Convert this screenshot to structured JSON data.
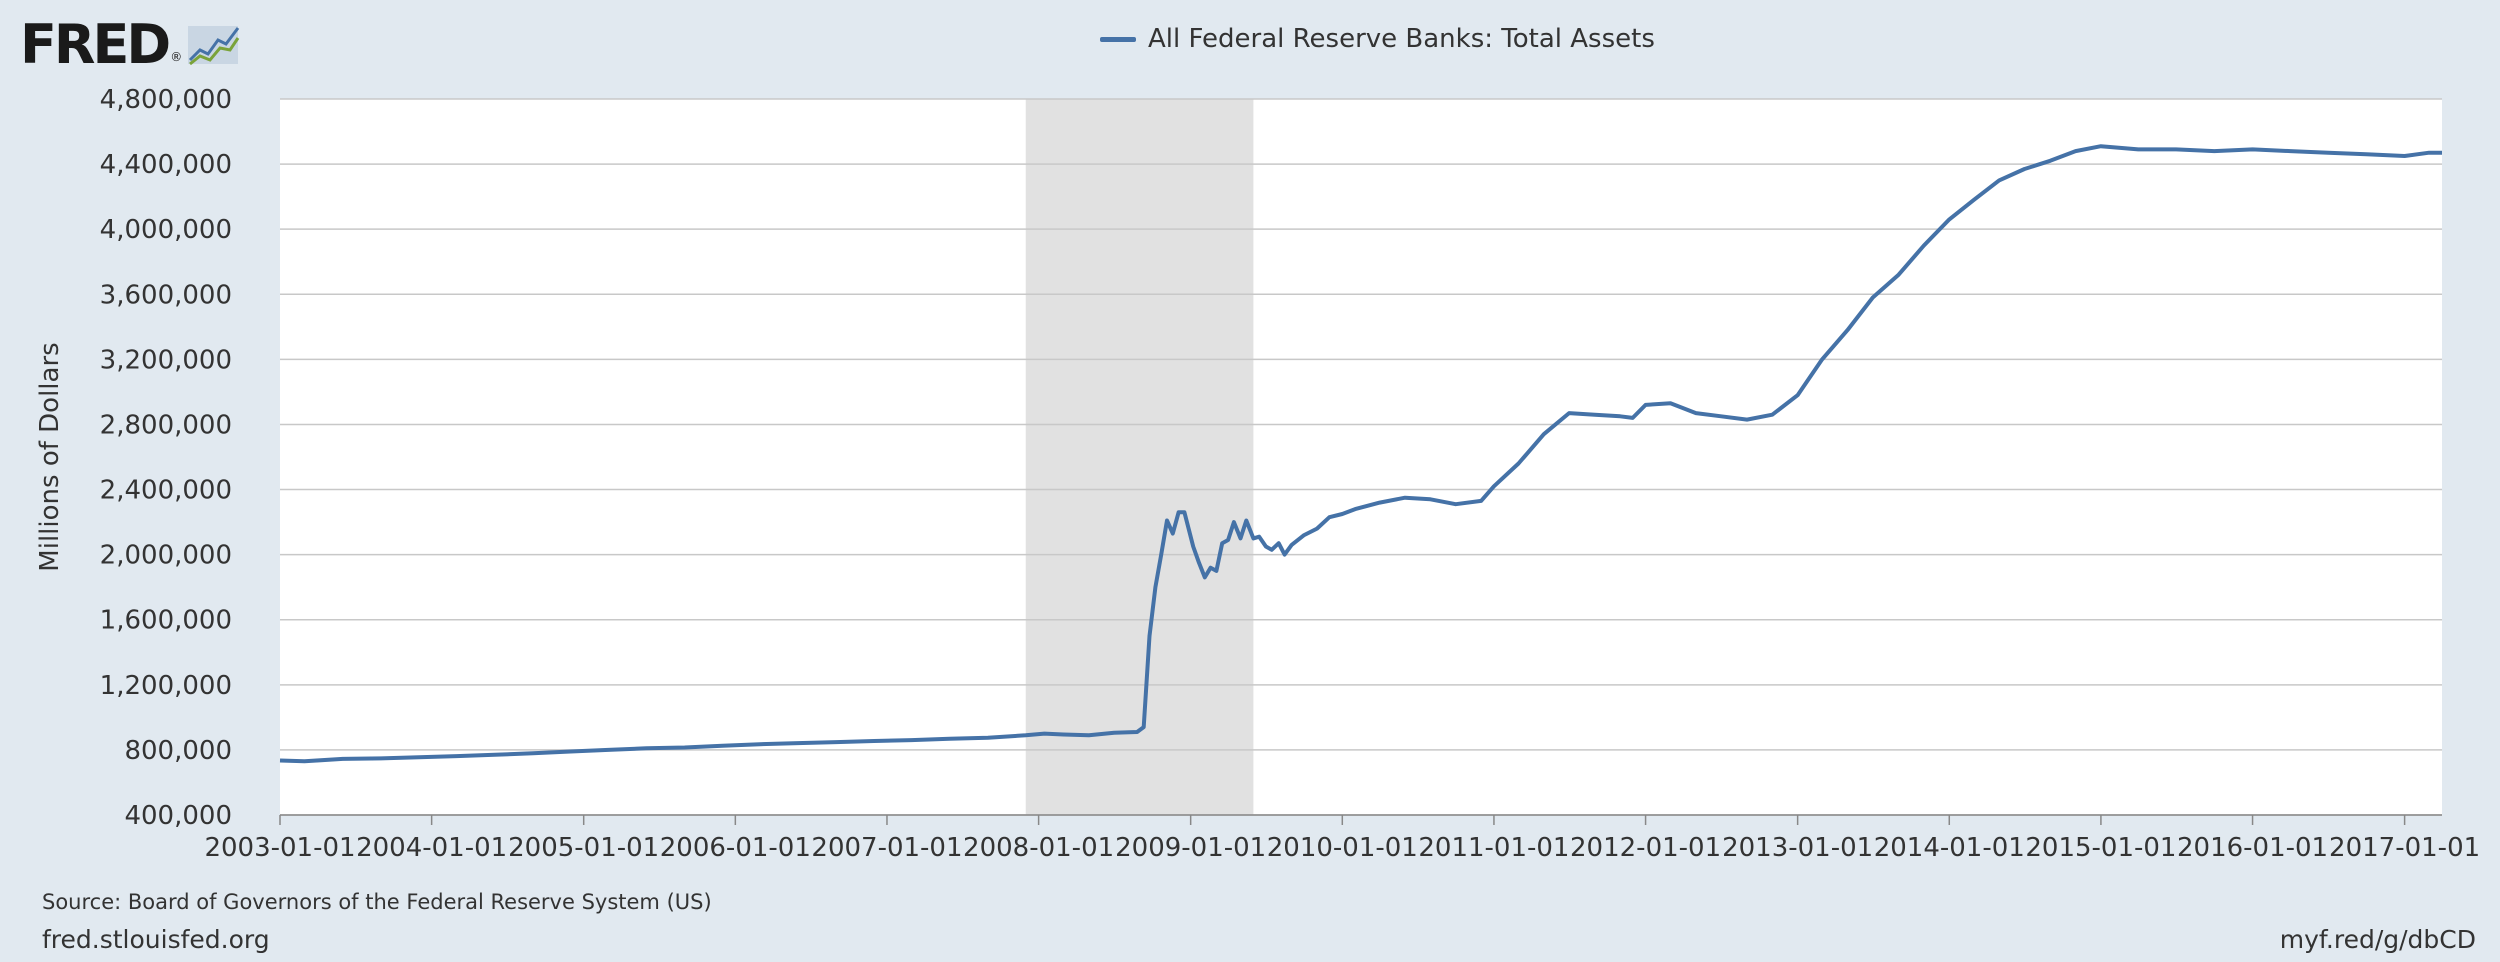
{
  "header": {
    "logo_text": "FRED",
    "logo_reg": "®"
  },
  "footer": {
    "source": "Source: Board of Governors of the Federal Reserve System (US)",
    "site": "fred.stlouisfed.org",
    "shortlink": "myf.red/g/dbCD"
  },
  "colors": {
    "line": "#4572a7",
    "plot_bg": "#ffffff",
    "page_bg": "#e1e9f0",
    "recession": "#e1e1e1",
    "grid": "#c8c8c8"
  },
  "chart_data": {
    "type": "line",
    "title": "",
    "xlabel": "",
    "ylabel": "Millions of Dollars",
    "ylim": [
      400000,
      4800000
    ],
    "xlim": [
      "2003-01-01",
      "2017-04-01"
    ],
    "yticks": [
      400000,
      800000,
      1200000,
      1600000,
      2000000,
      2400000,
      2800000,
      3200000,
      3600000,
      4000000,
      4400000,
      4800000
    ],
    "ytick_labels": [
      "400,000",
      "800,000",
      "1,200,000",
      "1,600,000",
      "2,000,000",
      "2,400,000",
      "2,800,000",
      "3,200,000",
      "3,600,000",
      "4,000,000",
      "4,400,000",
      "4,800,000"
    ],
    "xticks": [
      "2003-01-01",
      "2004-01-01",
      "2005-01-01",
      "2006-01-01",
      "2007-01-01",
      "2008-01-01",
      "2009-01-01",
      "2010-01-01",
      "2011-01-01",
      "2012-01-01",
      "2013-01-01",
      "2014-01-01",
      "2015-01-01",
      "2016-01-01",
      "2017-01-01"
    ],
    "grid": true,
    "legend": "top-center",
    "recessions": [
      {
        "start": "2007-12-01",
        "end": "2009-06-01"
      }
    ],
    "series": [
      {
        "name": "All Federal Reserve Banks: Total Assets",
        "points": [
          [
            "2003-01-01",
            735000
          ],
          [
            "2003-03-01",
            730000
          ],
          [
            "2003-06-01",
            745000
          ],
          [
            "2003-09-01",
            748000
          ],
          [
            "2003-12-01",
            755000
          ],
          [
            "2004-03-01",
            762000
          ],
          [
            "2004-06-01",
            770000
          ],
          [
            "2004-09-01",
            780000
          ],
          [
            "2004-12-01",
            790000
          ],
          [
            "2005-03-01",
            800000
          ],
          [
            "2005-06-01",
            810000
          ],
          [
            "2005-09-01",
            815000
          ],
          [
            "2005-12-01",
            825000
          ],
          [
            "2006-03-01",
            835000
          ],
          [
            "2006-06-01",
            842000
          ],
          [
            "2006-09-01",
            848000
          ],
          [
            "2006-12-01",
            855000
          ],
          [
            "2007-03-01",
            860000
          ],
          [
            "2007-06-01",
            868000
          ],
          [
            "2007-09-01",
            875000
          ],
          [
            "2007-12-01",
            890000
          ],
          [
            "2008-01-15",
            900000
          ],
          [
            "2008-03-01",
            895000
          ],
          [
            "2008-05-01",
            890000
          ],
          [
            "2008-07-01",
            905000
          ],
          [
            "2008-08-25",
            910000
          ],
          [
            "2008-09-10",
            940000
          ],
          [
            "2008-09-24",
            1500000
          ],
          [
            "2008-10-08",
            1800000
          ],
          [
            "2008-10-22",
            2000000
          ],
          [
            "2008-11-05",
            2210000
          ],
          [
            "2008-11-19",
            2130000
          ],
          [
            "2008-12-03",
            2260000
          ],
          [
            "2008-12-17",
            2260000
          ],
          [
            "2009-01-07",
            2050000
          ],
          [
            "2009-01-21",
            1950000
          ],
          [
            "2009-02-04",
            1860000
          ],
          [
            "2009-02-18",
            1920000
          ],
          [
            "2009-03-04",
            1900000
          ],
          [
            "2009-03-18",
            2070000
          ],
          [
            "2009-04-01",
            2090000
          ],
          [
            "2009-04-15",
            2200000
          ],
          [
            "2009-05-01",
            2100000
          ],
          [
            "2009-05-15",
            2210000
          ],
          [
            "2009-06-01",
            2100000
          ],
          [
            "2009-06-15",
            2110000
          ],
          [
            "2009-07-01",
            2050000
          ],
          [
            "2009-07-15",
            2030000
          ],
          [
            "2009-08-01",
            2070000
          ],
          [
            "2009-08-15",
            2000000
          ],
          [
            "2009-09-01",
            2060000
          ],
          [
            "2009-10-01",
            2120000
          ],
          [
            "2009-11-01",
            2160000
          ],
          [
            "2009-12-01",
            2230000
          ],
          [
            "2010-01-01",
            2250000
          ],
          [
            "2010-02-01",
            2280000
          ],
          [
            "2010-04-01",
            2320000
          ],
          [
            "2010-06-01",
            2350000
          ],
          [
            "2010-08-01",
            2340000
          ],
          [
            "2010-10-01",
            2310000
          ],
          [
            "2010-12-01",
            2330000
          ],
          [
            "2011-01-01",
            2420000
          ],
          [
            "2011-03-01",
            2560000
          ],
          [
            "2011-05-01",
            2740000
          ],
          [
            "2011-07-01",
            2870000
          ],
          [
            "2011-09-01",
            2860000
          ],
          [
            "2011-11-01",
            2850000
          ],
          [
            "2011-12-01",
            2840000
          ],
          [
            "2012-01-01",
            2920000
          ],
          [
            "2012-03-01",
            2930000
          ],
          [
            "2012-05-01",
            2870000
          ],
          [
            "2012-07-01",
            2850000
          ],
          [
            "2012-09-01",
            2830000
          ],
          [
            "2012-11-01",
            2860000
          ],
          [
            "2013-01-01",
            2980000
          ],
          [
            "2013-03-01",
            3200000
          ],
          [
            "2013-05-01",
            3380000
          ],
          [
            "2013-07-01",
            3580000
          ],
          [
            "2013-09-01",
            3720000
          ],
          [
            "2013-11-01",
            3900000
          ],
          [
            "2014-01-01",
            4060000
          ],
          [
            "2014-03-01",
            4180000
          ],
          [
            "2014-05-01",
            4300000
          ],
          [
            "2014-07-01",
            4370000
          ],
          [
            "2014-09-01",
            4420000
          ],
          [
            "2014-11-01",
            4480000
          ],
          [
            "2015-01-01",
            4510000
          ],
          [
            "2015-04-01",
            4490000
          ],
          [
            "2015-07-01",
            4490000
          ],
          [
            "2015-10-01",
            4480000
          ],
          [
            "2016-01-01",
            4490000
          ],
          [
            "2016-04-01",
            4480000
          ],
          [
            "2016-07-01",
            4470000
          ],
          [
            "2016-10-01",
            4460000
          ],
          [
            "2017-01-01",
            4450000
          ],
          [
            "2017-03-01",
            4470000
          ],
          [
            "2017-04-01",
            4470000
          ]
        ]
      }
    ]
  }
}
